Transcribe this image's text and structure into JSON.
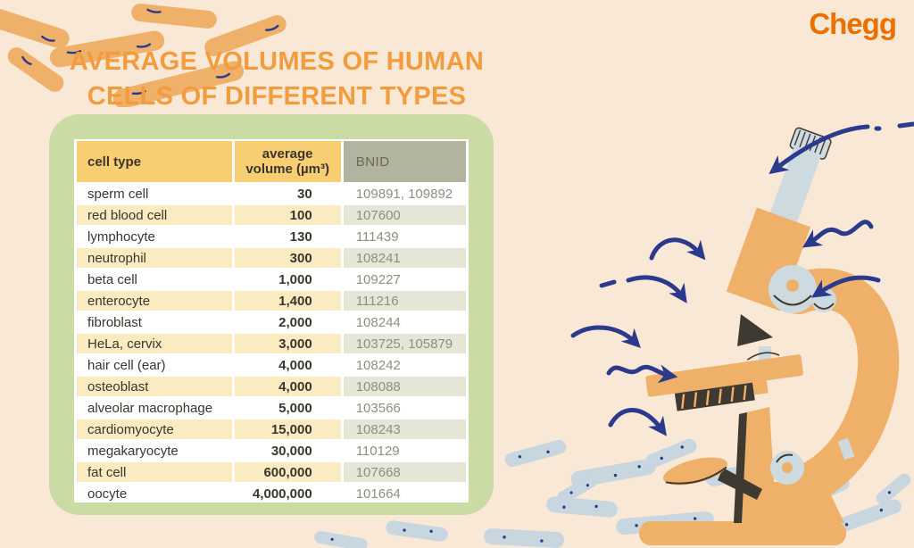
{
  "brand": {
    "name": "Chegg",
    "color": "#EC7000"
  },
  "title": {
    "line1": "AVERAGE VOLUMES OF HUMAN",
    "line2": "CELLS OF DIFFERENT TYPES",
    "color": "#F39C3D"
  },
  "table": {
    "headers": {
      "cell_type": "cell type",
      "volume_line1": "average",
      "volume_line2": "volume (µm³)",
      "bnid": "BNID"
    },
    "rows": [
      [
        "sperm cell",
        "30",
        "109891, 109892"
      ],
      [
        "red blood cell",
        "100",
        "107600"
      ],
      [
        "lymphocyte",
        "130",
        "111439"
      ],
      [
        "neutrophil",
        "300",
        "108241"
      ],
      [
        "beta cell",
        "1,000",
        "109227"
      ],
      [
        "enterocyte",
        "1,400",
        "111216"
      ],
      [
        "fibroblast",
        "2,000",
        "108244"
      ],
      [
        "HeLa, cervix",
        "3,000",
        "103725, 105879"
      ],
      [
        "hair cell (ear)",
        "4,000",
        "108242"
      ],
      [
        "osteoblast",
        "4,000",
        "108088"
      ],
      [
        "alveolar macrophage",
        "5,000",
        "103566"
      ],
      [
        "cardiomyocyte",
        "15,000",
        "108243"
      ],
      [
        "megakaryocyte",
        "30,000",
        "110129"
      ],
      [
        "fat cell",
        "600,000",
        "107668"
      ],
      [
        "oocyte",
        "4,000,000",
        "101664"
      ]
    ]
  },
  "chart_data": {
    "type": "table",
    "title": "AVERAGE VOLUMES OF HUMAN CELLS OF DIFFERENT TYPES",
    "columns": [
      "cell type",
      "average volume (µm³)",
      "BNID"
    ],
    "rows": [
      [
        "sperm cell",
        30,
        "109891, 109892"
      ],
      [
        "red blood cell",
        100,
        "107600"
      ],
      [
        "lymphocyte",
        130,
        "111439"
      ],
      [
        "neutrophil",
        300,
        "108241"
      ],
      [
        "beta cell",
        1000,
        "109227"
      ],
      [
        "enterocyte",
        1400,
        "111216"
      ],
      [
        "fibroblast",
        2000,
        "108244"
      ],
      [
        "HeLa, cervix",
        3000,
        "103725, 105879"
      ],
      [
        "hair cell (ear)",
        4000,
        "108242"
      ],
      [
        "osteoblast",
        4000,
        "108088"
      ],
      [
        "alveolar macrophage",
        5000,
        "103566"
      ],
      [
        "cardiomyocyte",
        15000,
        "108243"
      ],
      [
        "megakaryocyte",
        30000,
        "110129"
      ],
      [
        "fat cell",
        600000,
        "107668"
      ],
      [
        "oocyte",
        4000000,
        "101664"
      ]
    ]
  },
  "colors": {
    "background": "#FAE8D7",
    "panel_green": "#CADCA4",
    "header_yellow": "#F8CE72",
    "row_tint": "#FBEBC1",
    "bnid_header_gray": "#B3B4A0",
    "arrow_navy": "#2B3A8C",
    "illustration_orange": "#EFB169"
  }
}
